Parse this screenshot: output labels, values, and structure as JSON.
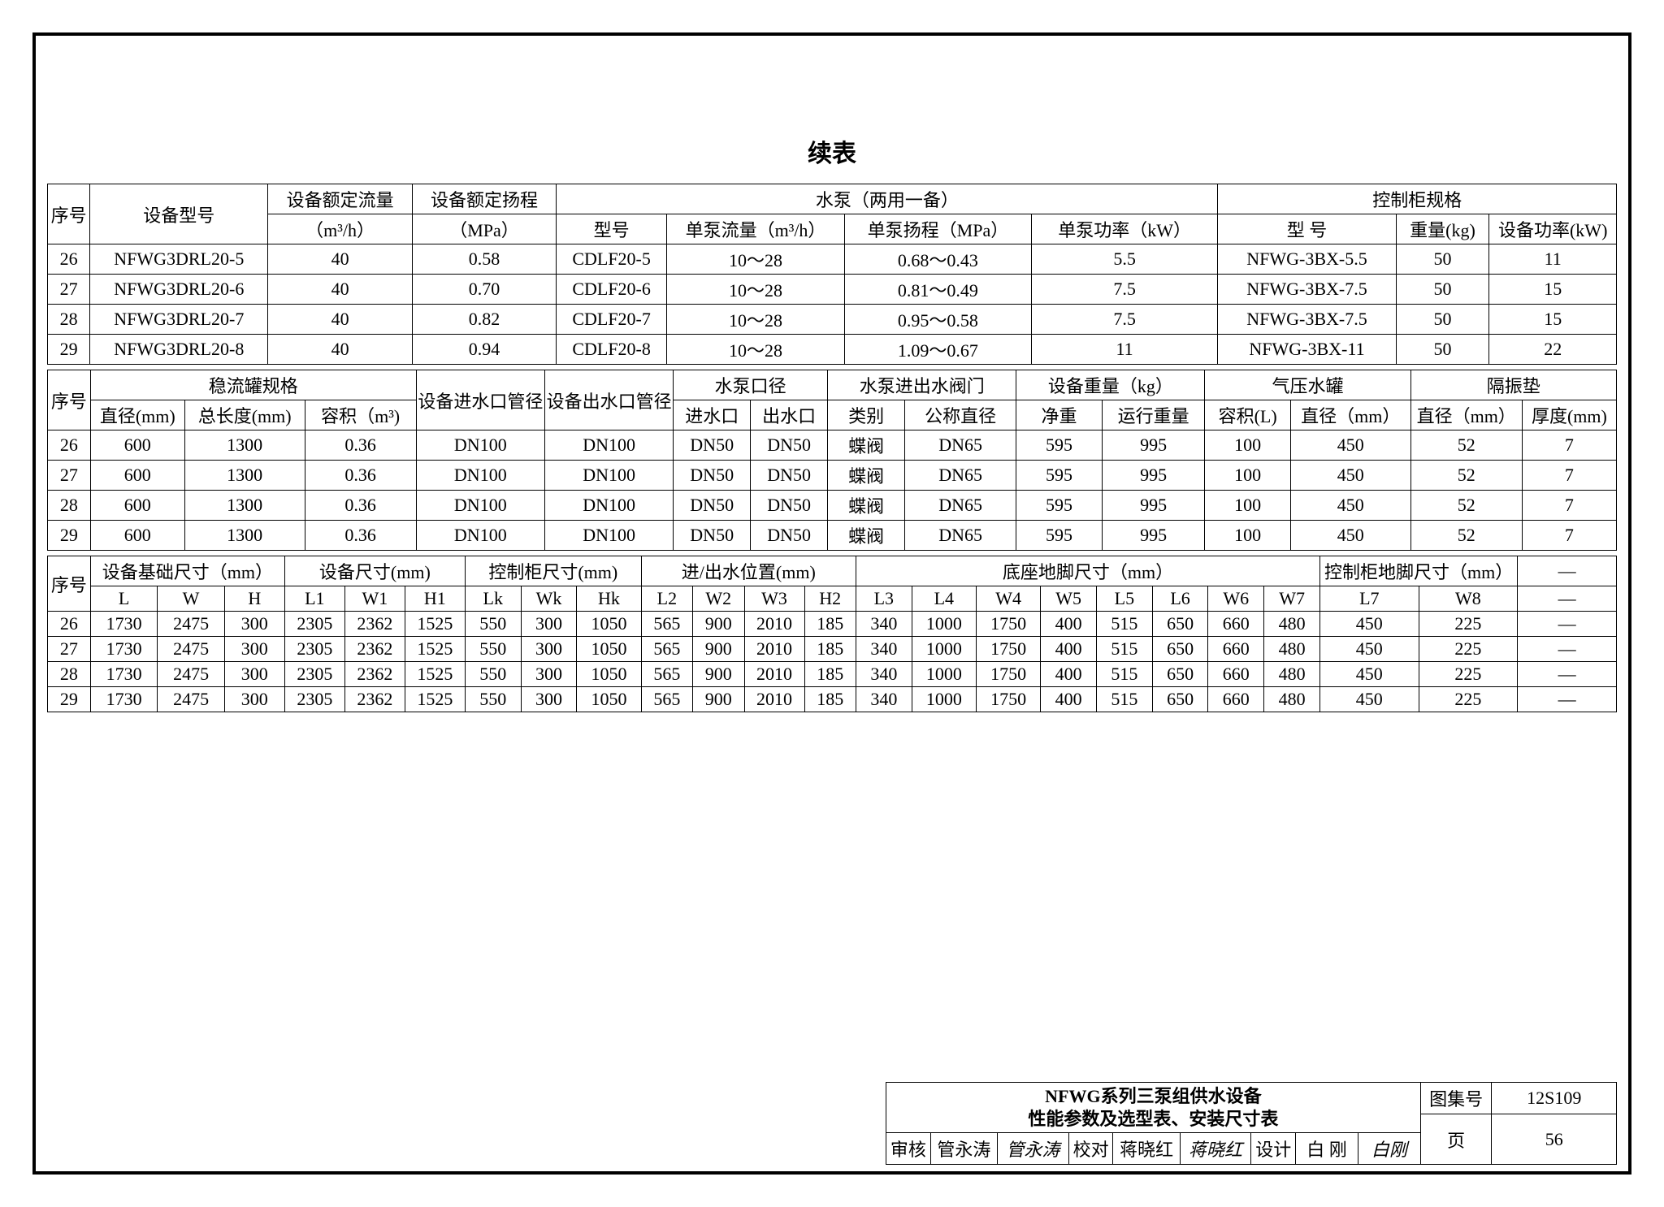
{
  "title": "续表",
  "t1": {
    "h": {
      "seq": "序号",
      "model": "设备型号",
      "flow": "设备额定流量",
      "flowu": "（m³/h）",
      "head": "设备额定扬程",
      "headu": "（MPa）",
      "pump": "水泵（两用一备）",
      "pmodel": "型号",
      "pflow": "单泵流量（m³/h）",
      "phead": "单泵扬程（MPa）",
      "ppow": "单泵功率（kW）",
      "cab": "控制柜规格",
      "cmodel": "型 号",
      "wt": "重量(kg)",
      "cpow": "设备功率(kW)"
    },
    "r": [
      {
        "n": "26",
        "m": "NFWG3DRL20-5",
        "f": "40",
        "hd": "0.58",
        "pm": "CDLF20-5",
        "pf": "10～28",
        "ph": "0.68～0.43",
        "pp": "5.5",
        "cm": "NFWG-3BX-5.5",
        "w": "50",
        "cp": "11"
      },
      {
        "n": "27",
        "m": "NFWG3DRL20-6",
        "f": "40",
        "hd": "0.70",
        "pm": "CDLF20-6",
        "pf": "10～28",
        "ph": "0.81～0.49",
        "pp": "7.5",
        "cm": "NFWG-3BX-7.5",
        "w": "50",
        "cp": "15"
      },
      {
        "n": "28",
        "m": "NFWG3DRL20-7",
        "f": "40",
        "hd": "0.82",
        "pm": "CDLF20-7",
        "pf": "10～28",
        "ph": "0.95～0.58",
        "pp": "7.5",
        "cm": "NFWG-3BX-7.5",
        "w": "50",
        "cp": "15"
      },
      {
        "n": "29",
        "m": "NFWG3DRL20-8",
        "f": "40",
        "hd": "0.94",
        "pm": "CDLF20-8",
        "pf": "10～28",
        "ph": "1.09～0.67",
        "pp": "11",
        "cm": "NFWG-3BX-11",
        "w": "50",
        "cp": "22"
      }
    ]
  },
  "t2": {
    "h": {
      "seq": "序号",
      "tank": "稳流罐规格",
      "dia": "直径(mm)",
      "len": "总长度(mm)",
      "vol": "容积（m³)",
      "in": "设备进水口管径",
      "out": "设备出水口管径",
      "pdia": "水泵口径",
      "pin": "进水口",
      "pout": "出水口",
      "valve": "水泵进出水阀门",
      "vtype": "类别",
      "vdn": "公称直径",
      "ewt": "设备重量（kg）",
      "net": "净重",
      "run": "运行重量",
      "air": "气压水罐",
      "avol": "容积(L)",
      "adia": "直径（mm）",
      "pad": "隔振垫",
      "pdia2": "直径（mm）",
      "pth": "厚度(mm)"
    },
    "r": [
      {
        "n": "26",
        "d": "600",
        "l": "1300",
        "v": "0.36",
        "i": "DN100",
        "o": "DN100",
        "pi": "DN50",
        "po": "DN50",
        "vt": "蝶阀",
        "vd": "DN65",
        "nw": "595",
        "rw": "995",
        "av": "100",
        "ad": "450",
        "pd": "52",
        "pt": "7"
      },
      {
        "n": "27",
        "d": "600",
        "l": "1300",
        "v": "0.36",
        "i": "DN100",
        "o": "DN100",
        "pi": "DN50",
        "po": "DN50",
        "vt": "蝶阀",
        "vd": "DN65",
        "nw": "595",
        "rw": "995",
        "av": "100",
        "ad": "450",
        "pd": "52",
        "pt": "7"
      },
      {
        "n": "28",
        "d": "600",
        "l": "1300",
        "v": "0.36",
        "i": "DN100",
        "o": "DN100",
        "pi": "DN50",
        "po": "DN50",
        "vt": "蝶阀",
        "vd": "DN65",
        "nw": "595",
        "rw": "995",
        "av": "100",
        "ad": "450",
        "pd": "52",
        "pt": "7"
      },
      {
        "n": "29",
        "d": "600",
        "l": "1300",
        "v": "0.36",
        "i": "DN100",
        "o": "DN100",
        "pi": "DN50",
        "po": "DN50",
        "vt": "蝶阀",
        "vd": "DN65",
        "nw": "595",
        "rw": "995",
        "av": "100",
        "ad": "450",
        "pd": "52",
        "pt": "7"
      }
    ]
  },
  "t3": {
    "h": {
      "seq": "序号",
      "base": "设备基础尺寸（mm）",
      "eq": "设备尺寸(mm)",
      "cab": "控制柜尺寸(mm)",
      "io": "进/出水位置(mm)",
      "foot": "底座地脚尺寸（mm）",
      "cfoot": "控制柜地脚尺寸（mm）",
      "dash": "—",
      "c": [
        "L",
        "W",
        "H",
        "L1",
        "W1",
        "H1",
        "Lk",
        "Wk",
        "Hk",
        "L2",
        "W2",
        "W3",
        "H2",
        "L3",
        "L4",
        "W4",
        "W5",
        "L5",
        "L6",
        "W6",
        "W7",
        "L7",
        "W8",
        "—"
      ]
    },
    "r": [
      {
        "n": "26",
        "v": [
          "1730",
          "2475",
          "300",
          "2305",
          "2362",
          "1525",
          "550",
          "300",
          "1050",
          "565",
          "900",
          "2010",
          "185",
          "340",
          "1000",
          "1750",
          "400",
          "515",
          "650",
          "660",
          "480",
          "450",
          "225",
          "—"
        ]
      },
      {
        "n": "27",
        "v": [
          "1730",
          "2475",
          "300",
          "2305",
          "2362",
          "1525",
          "550",
          "300",
          "1050",
          "565",
          "900",
          "2010",
          "185",
          "340",
          "1000",
          "1750",
          "400",
          "515",
          "650",
          "660",
          "480",
          "450",
          "225",
          "—"
        ]
      },
      {
        "n": "28",
        "v": [
          "1730",
          "2475",
          "300",
          "2305",
          "2362",
          "1525",
          "550",
          "300",
          "1050",
          "565",
          "900",
          "2010",
          "185",
          "340",
          "1000",
          "1750",
          "400",
          "515",
          "650",
          "660",
          "480",
          "450",
          "225",
          "—"
        ]
      },
      {
        "n": "29",
        "v": [
          "1730",
          "2475",
          "300",
          "2305",
          "2362",
          "1525",
          "550",
          "300",
          "1050",
          "565",
          "900",
          "2010",
          "185",
          "340",
          "1000",
          "1750",
          "400",
          "515",
          "650",
          "660",
          "480",
          "450",
          "225",
          "—"
        ]
      }
    ]
  },
  "footer": {
    "title1": "NFWG系列三泵组供水设备",
    "title2": "性能参数及选型表、安装尺寸表",
    "atlas_l": "图集号",
    "atlas": "12S109",
    "page_l": "页",
    "page": "56",
    "rev_l": "审核",
    "rev": "管永涛",
    "revs": "管永涛",
    "chk_l": "校对",
    "chk": "蒋晓红",
    "chks": "蒋晓红",
    "des_l": "设计",
    "des": "白 刚",
    "dess": "白刚"
  }
}
